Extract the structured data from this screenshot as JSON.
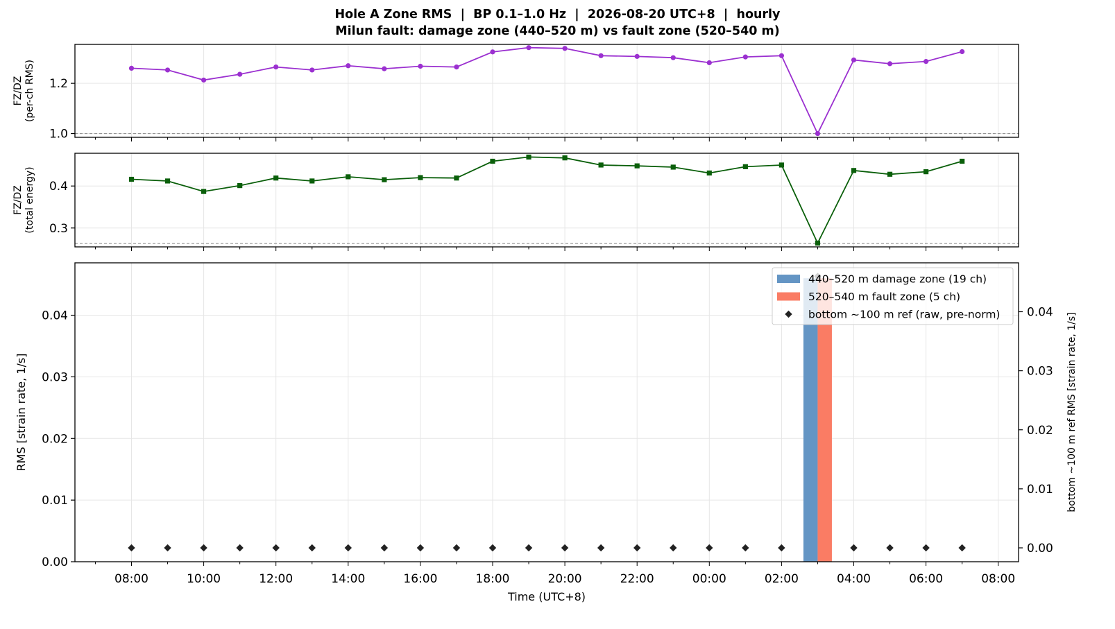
{
  "figure": {
    "title_line1": "Hole A Zone RMS  |  BP 0.1–1.0 Hz  |  2026-08-20 UTC+8  |  hourly",
    "title_line2": "Milun fault: damage zone (440–520 m) vs fault zone (520–540 m)"
  },
  "chart_data": [
    {
      "type": "line",
      "panel": "top",
      "ylabel_lines": [
        "FZ/DZ",
        "(per-ch RMS)"
      ],
      "ylim": [
        0.985,
        1.355
      ],
      "yticks": [
        "1.0",
        "1.2"
      ],
      "ytick_values": [
        1.0,
        1.2
      ],
      "reference_line": 1.0,
      "color": "#9b30d0",
      "marker": "circle",
      "grid": true,
      "x": [
        "08:00",
        "09:00",
        "10:00",
        "11:00",
        "12:00",
        "13:00",
        "14:00",
        "15:00",
        "16:00",
        "17:00",
        "18:00",
        "19:00",
        "20:00",
        "21:00",
        "22:00",
        "23:00",
        "00:00",
        "01:00",
        "02:00",
        "03:00",
        "04:00",
        "05:00",
        "06:00",
        "07:00"
      ],
      "values": [
        1.26,
        1.253,
        1.213,
        1.236,
        1.265,
        1.253,
        1.27,
        1.258,
        1.268,
        1.265,
        1.325,
        1.342,
        1.339,
        1.31,
        1.307,
        1.302,
        1.282,
        1.305,
        1.31,
        1.0,
        1.293,
        1.278,
        1.287,
        1.326
      ]
    },
    {
      "type": "line",
      "panel": "middle",
      "ylabel_lines": [
        "FZ/DZ",
        "(total energy)"
      ],
      "ylim": [
        0.255,
        0.478
      ],
      "yticks": [
        "0.3",
        "0.4"
      ],
      "ytick_values": [
        0.3,
        0.4
      ],
      "reference_line": 0.263,
      "color": "#0a5f0a",
      "marker": "square",
      "grid": true,
      "x": [
        "08:00",
        "09:00",
        "10:00",
        "11:00",
        "12:00",
        "13:00",
        "14:00",
        "15:00",
        "16:00",
        "17:00",
        "18:00",
        "19:00",
        "20:00",
        "21:00",
        "22:00",
        "23:00",
        "00:00",
        "01:00",
        "02:00",
        "03:00",
        "04:00",
        "05:00",
        "06:00",
        "07:00"
      ],
      "values": [
        0.416,
        0.412,
        0.387,
        0.401,
        0.419,
        0.412,
        0.422,
        0.415,
        0.42,
        0.419,
        0.459,
        0.469,
        0.467,
        0.45,
        0.448,
        0.445,
        0.431,
        0.446,
        0.45,
        0.264,
        0.437,
        0.428,
        0.434,
        0.459
      ]
    },
    {
      "type": "bar",
      "panel": "bottom",
      "xlabel": "Time (UTC+8)",
      "ylabel": "RMS  [strain rate, 1/s]",
      "y2label": "bottom ~100 m ref RMS  [strain rate, 1/s]",
      "ylim": [
        0.0,
        0.0485
      ],
      "yticks": [
        "0.00",
        "0.01",
        "0.02",
        "0.03",
        "0.04"
      ],
      "ytick_values": [
        0.0,
        0.01,
        0.02,
        0.03,
        0.04
      ],
      "y2lim": [
        -0.003,
        0.048
      ],
      "y2ticks": [
        "0.00",
        "0.01",
        "0.02",
        "0.03",
        "0.04"
      ],
      "y2tick_values": [
        0.0,
        0.01,
        0.02,
        0.03,
        0.04
      ],
      "xticks": [
        "08:00",
        "10:00",
        "12:00",
        "14:00",
        "16:00",
        "18:00",
        "20:00",
        "22:00",
        "00:00",
        "02:00",
        "04:00",
        "06:00",
        "08:00"
      ],
      "legend_position": "upper right",
      "grid": true,
      "series": [
        {
          "name": "440–520 m  damage zone (19 ch)",
          "kind": "bar",
          "color": "#6495c4",
          "x": [
            "03:00"
          ],
          "values": [
            0.046
          ]
        },
        {
          "name": "520–540 m  fault zone (5 ch)",
          "kind": "bar",
          "color": "#fa7c64",
          "x": [
            "03:00"
          ],
          "values": [
            0.046
          ]
        },
        {
          "name": "bottom ~100 m ref (raw, pre-norm)",
          "kind": "scatter",
          "axis": "right",
          "color": "#222222",
          "marker": "diamond",
          "x": [
            "08:00",
            "09:00",
            "10:00",
            "11:00",
            "12:00",
            "13:00",
            "14:00",
            "15:00",
            "16:00",
            "17:00",
            "18:00",
            "19:00",
            "20:00",
            "21:00",
            "22:00",
            "23:00",
            "00:00",
            "01:00",
            "02:00",
            "03:00",
            "04:00",
            "05:00",
            "06:00",
            "07:00"
          ],
          "values": [
            0.0,
            0.0,
            0.0,
            0.0,
            0.0,
            0.0,
            0.0,
            0.0,
            0.0,
            0.0,
            0.0,
            0.0,
            0.0,
            0.0,
            0.0,
            0.0,
            0.0,
            0.0,
            0.0,
            0.046,
            0.0,
            0.0,
            0.0,
            0.0
          ]
        }
      ]
    }
  ]
}
